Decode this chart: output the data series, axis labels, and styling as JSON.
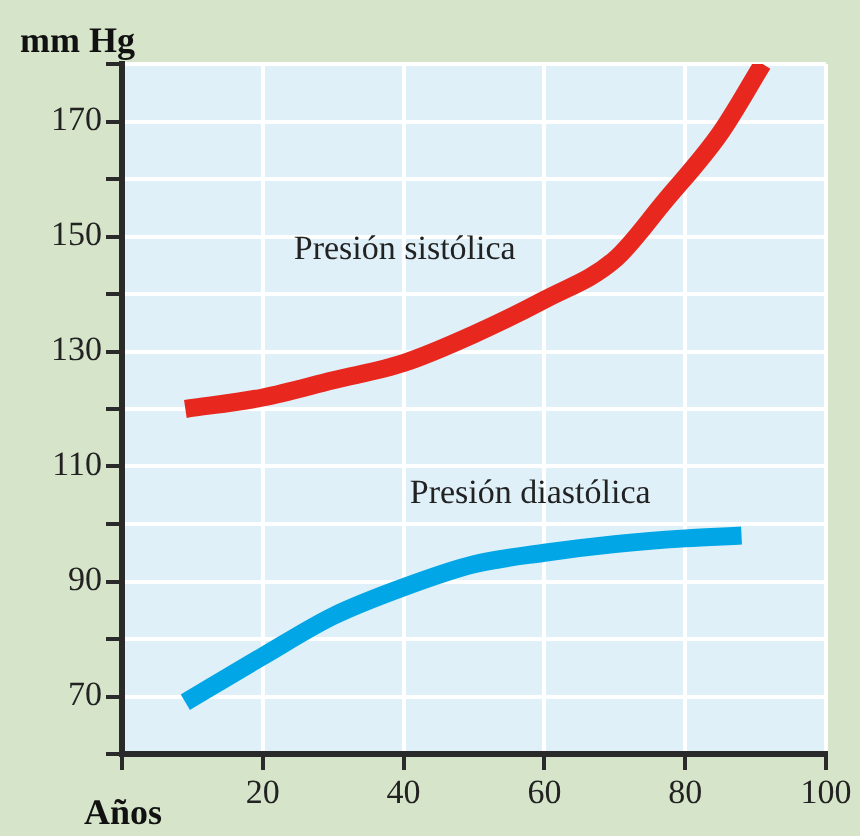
{
  "chart_data": {
    "type": "line",
    "xlabel": "Años",
    "ylabel": "mm Hg",
    "xlim": [
      0,
      100
    ],
    "xticks": [
      {
        "value": 0,
        "label": null
      },
      20,
      40,
      60,
      80,
      100
    ],
    "ylim": [
      60,
      180
    ],
    "yticks": [
      {
        "value": 60,
        "label": null
      },
      70,
      {
        "value": 80,
        "label": null
      },
      90,
      {
        "value": 100,
        "label": null
      },
      110,
      {
        "value": 120,
        "label": null
      },
      130,
      {
        "value": 140,
        "label": null
      },
      150,
      {
        "value": 160,
        "label": null
      },
      170,
      {
        "value": 180,
        "label": null
      }
    ],
    "grid": true,
    "legend": false,
    "marker": "none",
    "line_style": "solid",
    "series": [
      {
        "name": "Presión sistólica",
        "color": "#e8281e",
        "x": [
          9,
          20,
          30,
          40,
          50,
          60,
          70,
          77,
          85,
          91
        ],
        "values": [
          120,
          122,
          125,
          128,
          133,
          139,
          146,
          156,
          168,
          180
        ]
      },
      {
        "name": "Presión diastólica",
        "color": "#00a6e6",
        "x": [
          9,
          20,
          30,
          40,
          50,
          60,
          70,
          80,
          88
        ],
        "values": [
          69,
          77,
          84,
          89,
          93,
          95,
          96.5,
          97.5,
          98
        ]
      }
    ]
  }
}
